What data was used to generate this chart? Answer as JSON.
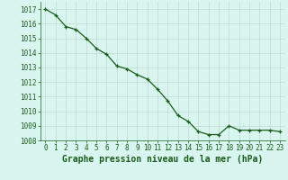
{
  "x": [
    0,
    1,
    2,
    3,
    4,
    5,
    6,
    7,
    8,
    9,
    10,
    11,
    12,
    13,
    14,
    15,
    16,
    17,
    18,
    19,
    20,
    21,
    22,
    23
  ],
  "y": [
    1017.0,
    1016.6,
    1015.8,
    1015.6,
    1015.0,
    1014.3,
    1013.9,
    1013.1,
    1012.9,
    1012.5,
    1012.2,
    1011.5,
    1010.7,
    1009.7,
    1009.3,
    1008.6,
    1008.4,
    1008.4,
    1009.0,
    1008.7,
    1008.7,
    1008.7,
    1008.7,
    1008.6
  ],
  "ylim_min": 1008,
  "ylim_max": 1017.5,
  "yticks": [
    1008,
    1009,
    1010,
    1011,
    1012,
    1013,
    1014,
    1015,
    1016,
    1017
  ],
  "xticks": [
    0,
    1,
    2,
    3,
    4,
    5,
    6,
    7,
    8,
    9,
    10,
    11,
    12,
    13,
    14,
    15,
    16,
    17,
    18,
    19,
    20,
    21,
    22,
    23
  ],
  "xlabel": "Graphe pression niveau de la mer (hPa)",
  "line_color": "#1a5c1a",
  "marker": "+",
  "bg_color": "#d8f5f0",
  "grid_color": "#c0dcd0",
  "tick_label_color": "#1a5c1a",
  "xlabel_color": "#1a5c1a",
  "xlabel_fontsize": 7,
  "tick_fontsize": 5.5,
  "linewidth": 0.9,
  "markersize": 2.5,
  "markeredgewidth": 0.9
}
